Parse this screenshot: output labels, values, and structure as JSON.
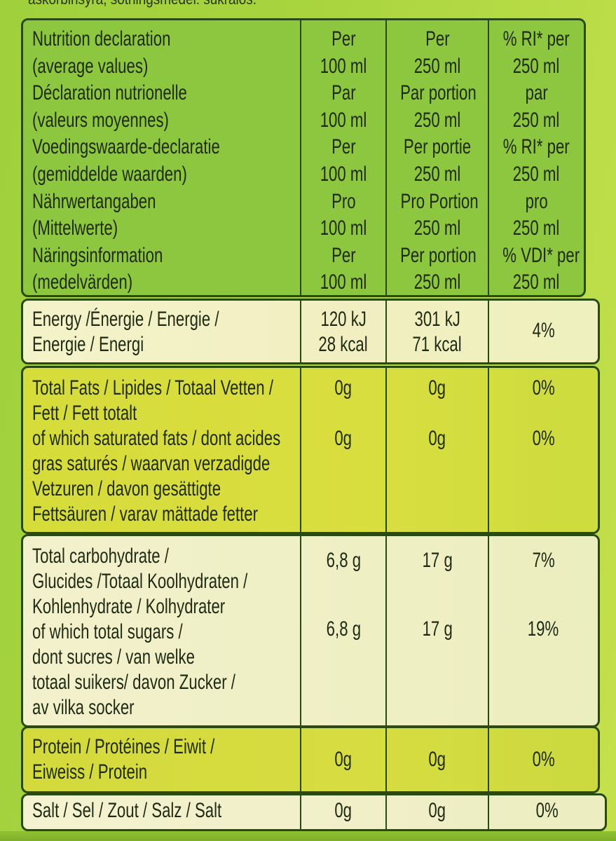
{
  "top_text": "askorbinsyra, sötningsmedel: sukralos.",
  "header": {
    "labels": [
      "Nutrition declaration",
      "(average values)",
      "Déclaration nutrionelle",
      "(valeurs moyennes)",
      "Voedingswaarde-declaratie",
      "(gemiddelde waarden)",
      "Nährwertangaben",
      "(Mittelwerte)",
      "Näringsinformation",
      "(medelvärden)"
    ],
    "per100": [
      "Per",
      "100 ml",
      "Par",
      "100 ml",
      "Per",
      "100 ml",
      "Pro",
      "100 ml",
      "Per",
      "100 ml"
    ],
    "per250": [
      "Per",
      "250 ml",
      "Par portion",
      "250 ml",
      "Per portie",
      "250 ml",
      "Pro Portion",
      "250 ml",
      "Per portion",
      "250 ml"
    ],
    "ri": [
      "% RI* per",
      "250 ml",
      "par",
      "250 ml",
      "% RI* per",
      "250 ml",
      "pro",
      "250 ml",
      "% VDI* per",
      "250 ml"
    ]
  },
  "energy": {
    "labels": [
      "Energy /Énergie / Energie /",
      "Energie / Energi"
    ],
    "per100": [
      "120 kJ",
      "28 kcal"
    ],
    "per250": [
      "301 kJ",
      "71 kcal"
    ],
    "ri": "4%"
  },
  "fats": {
    "labels": [
      "Total Fats / Lipides / Totaal Vetten /",
      "Fett / Fett totalt",
      "of which saturated fats / dont acides",
      "gras saturés / waarvan verzadigde",
      "Vetzuren / davon gesättigte",
      "Fettsäuren / varav mättade fetter"
    ],
    "total": {
      "per100": "0g",
      "per250": "0g",
      "ri": "0%"
    },
    "saturated": {
      "per100": "0g",
      "per250": "0g",
      "ri": "0%"
    }
  },
  "carbs": {
    "labels": [
      "Total carbohydrate /",
      "Glucides /Totaal Koolhydraten /",
      "Kohlenhydrate / Kolhydrater",
      "of which total sugars /",
      "dont sucres / van welke",
      "totaal suikers/ davon  Zucker /",
      "av vilka socker"
    ],
    "total": {
      "per100": "6,8 g",
      "per250": "17 g",
      "ri": "7%"
    },
    "sugars": {
      "per100": "6,8 g",
      "per250": "17 g",
      "ri": "19%"
    }
  },
  "protein": {
    "labels": [
      "Protein / Protéines / Eiwit /",
      "Eiweiss / Protein"
    ],
    "per100": "0g",
    "per250": "0g",
    "ri": "0%"
  },
  "salt": {
    "label": "Salt / Sel / Zout / Salz / Salt",
    "per100": "0g",
    "per250": "0g",
    "ri": "0%"
  }
}
